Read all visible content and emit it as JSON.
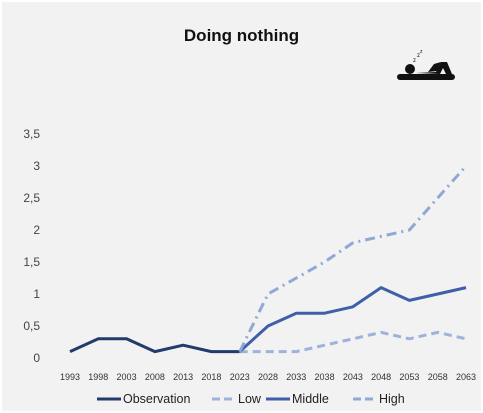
{
  "chart_data": {
    "type": "line",
    "title": "Doing nothing",
    "icon": "person-sleeping-icon",
    "categories": [
      "1993",
      "1998",
      "2003",
      "2008",
      "2013",
      "2018",
      "2023",
      "2028",
      "2033",
      "2038",
      "2043",
      "2048",
      "2053",
      "2058",
      "2063"
    ],
    "ylim": [
      0,
      3.5
    ],
    "yticks": [
      "0",
      "0,5",
      "1",
      "1,5",
      "2",
      "2,5",
      "3",
      "3,5"
    ],
    "grid": false,
    "legend": "bottom",
    "series": [
      {
        "name": "Observation",
        "color": "#233a6b",
        "dash": "solid",
        "values": [
          0.1,
          0.3,
          0.3,
          0.1,
          0.2,
          0.1,
          0.1,
          null,
          null,
          null,
          null,
          null,
          null,
          null,
          null
        ]
      },
      {
        "name": "Low",
        "color": "#9db3dd",
        "dash": "dashed",
        "values": [
          null,
          null,
          null,
          null,
          null,
          null,
          0.1,
          0.1,
          0.1,
          0.2,
          0.3,
          0.4,
          0.3,
          0.4,
          0.3
        ]
      },
      {
        "name": "Middle",
        "color": "#3f5fa8",
        "dash": "solid",
        "values": [
          null,
          null,
          null,
          null,
          null,
          null,
          0.1,
          0.5,
          0.7,
          0.7,
          0.8,
          1.1,
          0.9,
          1.0,
          1.1
        ]
      },
      {
        "name": "High",
        "color": "#8fa8d6",
        "dash": "dashdot",
        "values": [
          null,
          null,
          null,
          null,
          null,
          null,
          0.1,
          1.0,
          1.25,
          1.5,
          1.8,
          1.9,
          2.0,
          2.5,
          3.0
        ]
      }
    ]
  }
}
